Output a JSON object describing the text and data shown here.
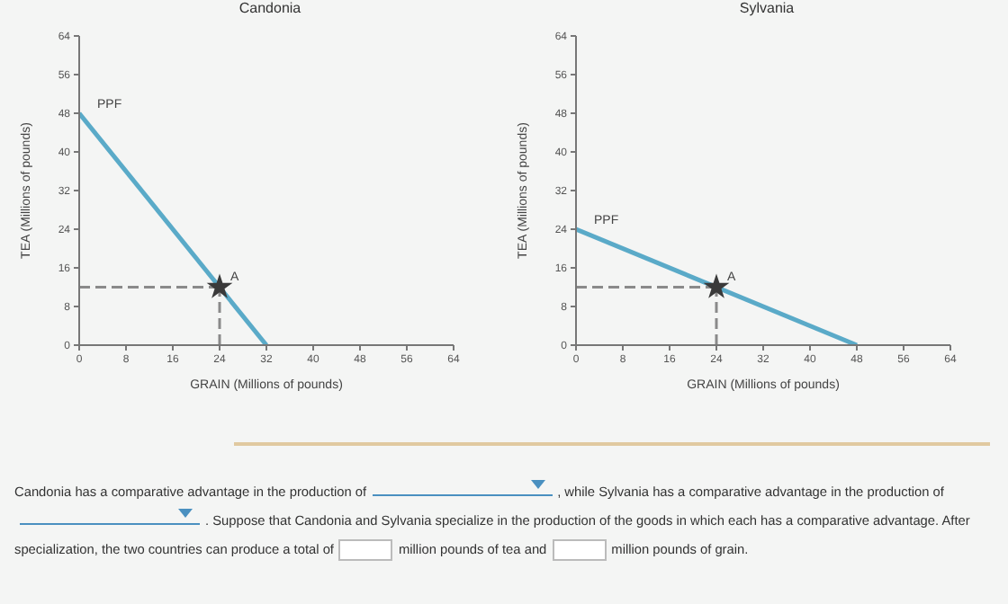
{
  "chart_data": [
    {
      "type": "line",
      "title": "Candonia",
      "xlabel": "GRAIN (Millions of pounds)",
      "ylabel": "TEA (Millions of pounds)",
      "xlim": [
        0,
        64
      ],
      "ylim": [
        0,
        64
      ],
      "xticks": [
        0,
        8,
        16,
        24,
        32,
        40,
        48,
        56,
        64
      ],
      "yticks": [
        0,
        8,
        16,
        24,
        32,
        40,
        48,
        56,
        64
      ],
      "grid": false,
      "annotations": [
        {
          "text": "A",
          "x": 24,
          "y": 12
        }
      ],
      "series": [
        {
          "name": "PPF",
          "color": "#5aaac8",
          "x": [
            0,
            32
          ],
          "values": [
            48,
            0
          ]
        },
        {
          "color": "#8a8a8a",
          "line_style": "dashed",
          "x": [
            0,
            24
          ],
          "values": [
            12,
            12
          ]
        },
        {
          "color": "#8a8a8a",
          "line_style": "dashed",
          "x": [
            24,
            24
          ],
          "values": [
            0,
            12
          ]
        },
        {
          "type": "scatter",
          "marker": "star",
          "color": "#3a3a3a",
          "x": [
            24
          ],
          "values": [
            12
          ]
        }
      ]
    },
    {
      "type": "line",
      "title": "Sylvania",
      "xlabel": "GRAIN (Millions of pounds)",
      "ylabel": "TEA (Millions of pounds)",
      "xlim": [
        0,
        64
      ],
      "ylim": [
        0,
        64
      ],
      "xticks": [
        0,
        8,
        16,
        24,
        32,
        40,
        48,
        56,
        64
      ],
      "yticks": [
        0,
        8,
        16,
        24,
        32,
        40,
        48,
        56,
        64
      ],
      "grid": false,
      "annotations": [
        {
          "text": "A",
          "x": 24,
          "y": 12
        }
      ],
      "series": [
        {
          "name": "PPF",
          "color": "#5aaac8",
          "x": [
            0,
            48
          ],
          "values": [
            24,
            0
          ]
        },
        {
          "color": "#8a8a8a",
          "line_style": "dashed",
          "x": [
            0,
            24
          ],
          "values": [
            12,
            12
          ]
        },
        {
          "color": "#8a8a8a",
          "line_style": "dashed",
          "x": [
            24,
            24
          ],
          "values": [
            0,
            12
          ]
        },
        {
          "type": "scatter",
          "marker": "star",
          "color": "#3a3a3a",
          "x": [
            24
          ],
          "values": [
            12
          ]
        }
      ]
    },
    {
      "type": "other",
      "annotations": [
        "Candonia has a comparative advantage in the production of",
        ", while Sylvania has a comparative advantage in the production of",
        ". Suppose that Candonia and Sylvania specialize in the production of the goods in which each has a comparative advantage. After specialization, the two countries can produce a total of",
        "million pounds of tea and",
        "million pounds of grain."
      ]
    }
  ]
}
